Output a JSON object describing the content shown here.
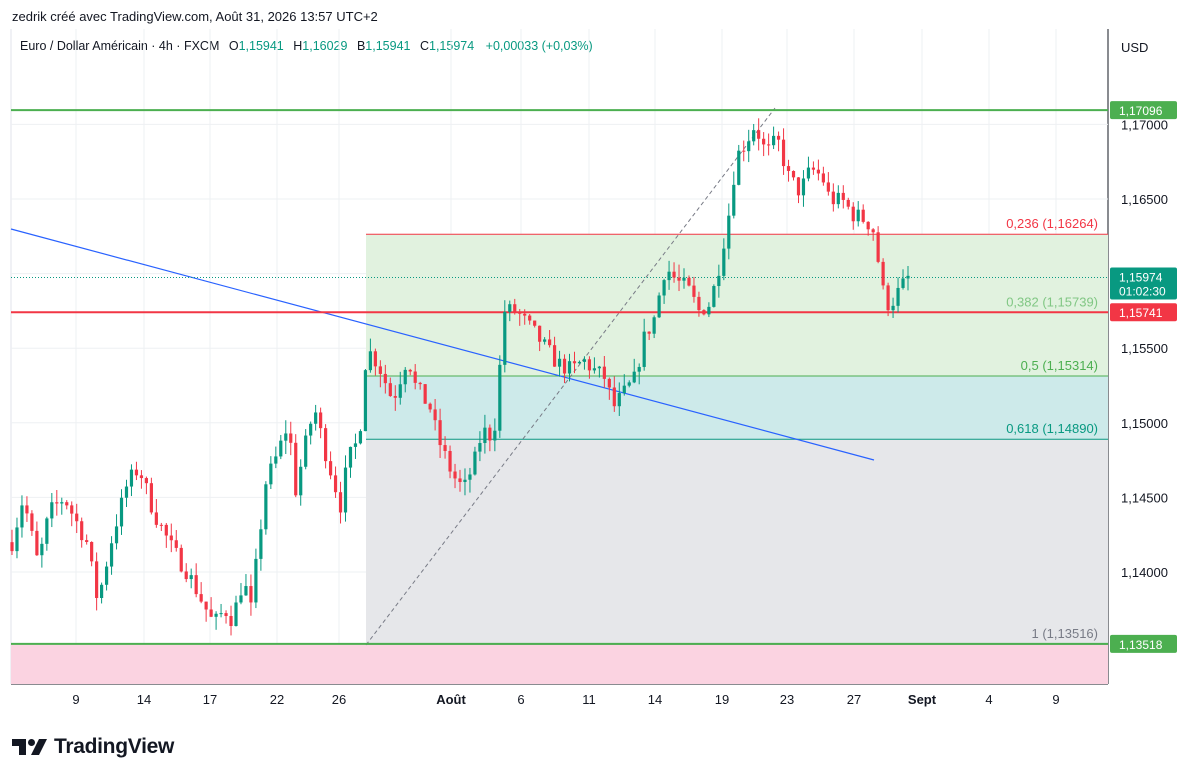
{
  "attribution": "zedrik créé avec TradingView.com, Août 31, 2026 13:57 UTC+2",
  "header": {
    "symbol": "Euro / Dollar Américain · 4h · FXCM",
    "open_label": "O",
    "open": "1,15941",
    "high_label": "H",
    "high": "1,16029",
    "low_label": "B",
    "low": "1,15941",
    "close_label": "C",
    "close": "1,15974",
    "change": "+0,00033 (+0,03%)"
  },
  "currency": "USD",
  "brand": "TradingView",
  "colors": {
    "up": "#089981",
    "down": "#f23645",
    "green_line": "#4caf50",
    "red_line": "#f23645",
    "trend": "#2962ff",
    "grid": "#eef0f3"
  },
  "chart_data": {
    "type": "candlestick",
    "timeframe": "4h",
    "y_axis": {
      "ticks": [
        1.135,
        1.14,
        1.145,
        1.15,
        1.155,
        1.16,
        1.165,
        1.17
      ],
      "tick_labels": [
        "",
        "1,14000",
        "1,14500",
        "1,15000",
        "1,15500",
        "",
        "1,16500",
        "1,17000"
      ],
      "range": [
        1.1316,
        1.1857
      ]
    },
    "x_axis": {
      "tick_labels": [
        "9",
        "14",
        "17",
        "22",
        "26",
        "Août",
        "6",
        "11",
        "14",
        "19",
        "23",
        "27",
        "Sept",
        "4",
        "9"
      ],
      "bold_labels": [
        "Août",
        "Sept"
      ]
    },
    "price_labels": [
      {
        "value": 1.17096,
        "text": "1,17096",
        "color": "#4caf50"
      },
      {
        "value": 1.15974,
        "text": "1,15974",
        "subtext": "01:02:30",
        "color": "#089981"
      },
      {
        "value": 1.15741,
        "text": "1,15741",
        "color": "#f23645"
      },
      {
        "value": 1.13518,
        "text": "1,13518",
        "color": "#4caf50"
      }
    ],
    "horizontal_lines": [
      {
        "value": 1.17096,
        "color": "#4caf50"
      },
      {
        "value": 1.15741,
        "color": "#f23645"
      },
      {
        "value": 1.13518,
        "color": "#4caf50"
      }
    ],
    "fibonacci": {
      "levels": [
        {
          "ratio": "0,236",
          "value": 1.16264,
          "label": "0,236 (1,16264)",
          "color": "#f23645",
          "fill": "#e1f2df"
        },
        {
          "ratio": "0,382",
          "value": 1.15739,
          "label": "0,382 (1,15739)",
          "color": "#81c784",
          "fill": "#e1f2df"
        },
        {
          "ratio": "0,5",
          "value": 1.15314,
          "label": "0,5 (1,15314)",
          "color": "#4caf50",
          "fill": "#e1f2df"
        },
        {
          "ratio": "0,618",
          "value": 1.1489,
          "label": "0,618 (1,14890)",
          "color": "#089981",
          "fill": "#cdeaea"
        },
        {
          "ratio": "1",
          "value": 1.13516,
          "label": "1 (1,13516)",
          "color": "#787b86",
          "fill": "#e6e7ea"
        }
      ],
      "below_fill": "#fbd3e1"
    },
    "trend_line": {
      "from": [
        1.1628,
        "early July"
      ],
      "to": [
        1.1475,
        "Aug 28"
      ]
    },
    "current_price": 1.15974,
    "current_close_countdown": "01:02:30"
  }
}
